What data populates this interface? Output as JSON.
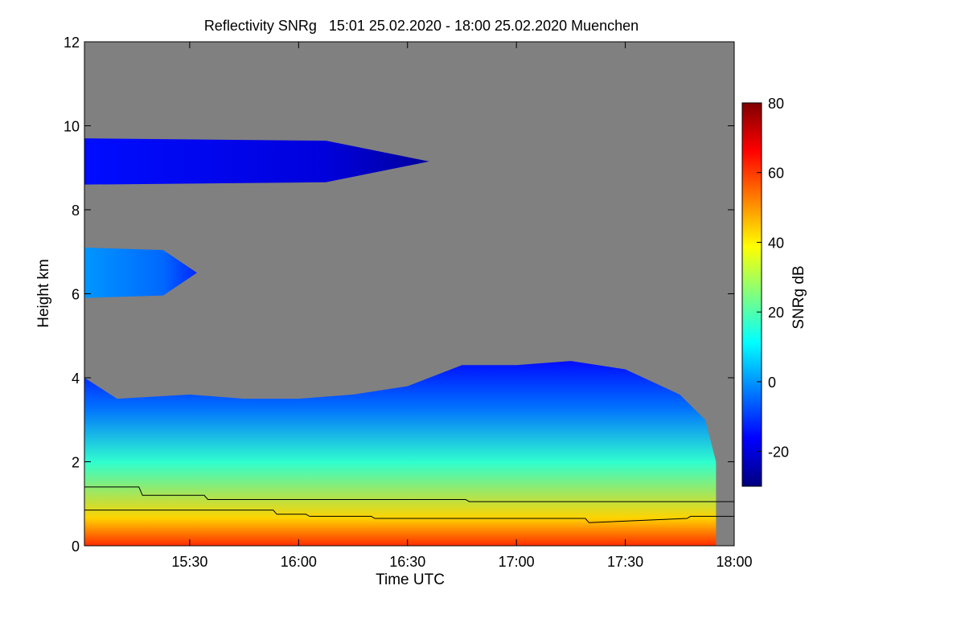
{
  "chart_data": {
    "type": "heatmap",
    "title": "Reflectivity SNRg   15:01 25.02.2020 - 18:00 25.02.2020 Muenchen",
    "xlabel": "Time UTC",
    "ylabel": "Height km",
    "xlim": [
      "15:01",
      "18:00"
    ],
    "x_ticks": [
      "15:30",
      "16:00",
      "16:30",
      "17:00",
      "17:30",
      "18:00"
    ],
    "ylim": [
      0,
      12
    ],
    "y_ticks": [
      0,
      2,
      4,
      6,
      8,
      10,
      12
    ],
    "grid": false,
    "colorbar": {
      "label": "SNRg dB",
      "range": [
        -30,
        80
      ],
      "ticks": [
        -20,
        0,
        20,
        40,
        60,
        80
      ],
      "colors": [
        "#00007f",
        "#0000ff",
        "#007fff",
        "#00ffff",
        "#7fff7f",
        "#ffff00",
        "#ff7f00",
        "#ff0000",
        "#7f0000"
      ]
    },
    "no_data_color": "#808080",
    "regions": [
      {
        "feature": "cirrus layer",
        "time_start": "15:01",
        "time_end": "16:36",
        "height_bottom_km": 8.6,
        "height_top_km": 9.7,
        "snr_db": -15
      },
      {
        "feature": "mid-level layer",
        "time_start": "15:01",
        "time_end": "15:32",
        "height_bottom_km": 5.9,
        "height_top_km": 7.1,
        "snr_db": 0
      },
      {
        "feature": "precipitation / low cloud",
        "time_start": "15:01",
        "time_end": "17:52",
        "height_bottom_km": 0,
        "height_top_km": 4.4,
        "snr_db_range": [
          -15,
          75
        ]
      }
    ],
    "echo_top_km": [
      {
        "time": "15:01",
        "height": 4.0
      },
      {
        "time": "15:10",
        "height": 3.5
      },
      {
        "time": "15:30",
        "height": 3.6
      },
      {
        "time": "15:45",
        "height": 3.5
      },
      {
        "time": "16:00",
        "height": 3.5
      },
      {
        "time": "16:15",
        "height": 3.6
      },
      {
        "time": "16:30",
        "height": 3.8
      },
      {
        "time": "16:45",
        "height": 4.3
      },
      {
        "time": "17:00",
        "height": 4.3
      },
      {
        "time": "17:15",
        "height": 4.4
      },
      {
        "time": "17:30",
        "height": 4.2
      },
      {
        "time": "17:45",
        "height": 3.6
      },
      {
        "time": "17:52",
        "height": 3.0
      },
      {
        "time": "17:55",
        "height": 2.0
      }
    ],
    "series": [
      {
        "x": [
          "15:01",
          "15:16",
          "15:17",
          "15:34",
          "15:35",
          "16:46",
          "16:47",
          "18:00"
        ],
        "values": [
          1.4,
          1.4,
          1.2,
          1.2,
          1.1,
          1.1,
          1.05,
          1.05
        ]
      },
      {
        "x": [
          "15:01",
          "15:53",
          "15:54",
          "16:02",
          "16:03",
          "16:20",
          "16:21",
          "17:19",
          "17:20",
          "17:47",
          "17:48",
          "18:00"
        ],
        "values": [
          0.85,
          0.85,
          0.75,
          0.75,
          0.7,
          0.7,
          0.65,
          0.65,
          0.55,
          0.65,
          0.7,
          0.7
        ]
      }
    ]
  }
}
